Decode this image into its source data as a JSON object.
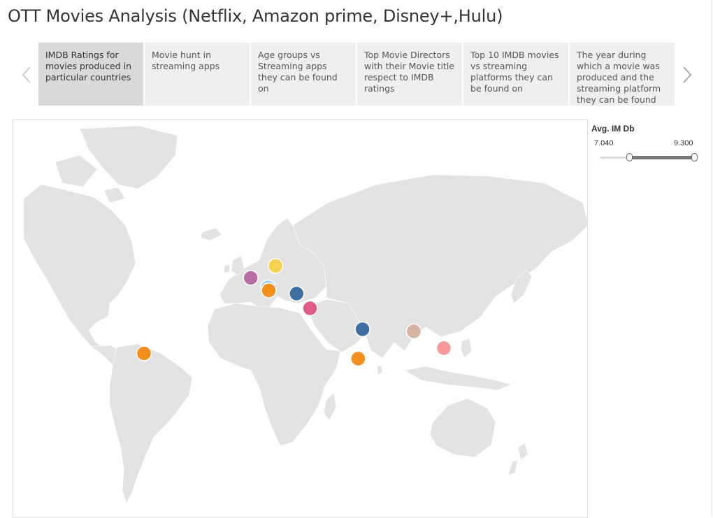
{
  "title": "OTT Movies Analysis (Netflix, Amazon prime, Disney+,Hulu)",
  "tabs": [
    {
      "label": "IMDB Ratings for movies produced in particular countries",
      "active": true
    },
    {
      "label": "Movie hunt in streaming apps",
      "active": false
    },
    {
      "label": "Age groups vs Streaming apps they can be found on",
      "active": false
    },
    {
      "label": "Top Movie Directors with their Movie title respect to IMDB ratings",
      "active": false
    },
    {
      "label": "Top 10 IMDB movies vs streaming platforms they can be found on",
      "active": false
    },
    {
      "label": "The year during which a movie was produced and the streaming platform they can be found on",
      "active": false
    }
  ],
  "nav": {
    "prev_icon": "chevron-left-icon",
    "next_icon": "chevron-right-icon"
  },
  "filter": {
    "title": "Avg. IM Db",
    "min_label": "7.040",
    "max_label": "9.300",
    "domain_min": 6.0,
    "domain_max": 9.3,
    "selected_min": 7.04,
    "selected_max": 9.3
  },
  "map": {
    "marks": [
      {
        "color": "#f7d154",
        "lon": 21.0,
        "lat": 52.2
      },
      {
        "color": "#b86fa8",
        "lon": 4.5,
        "lat": 46.5
      },
      {
        "color": "#9fd0ef",
        "lon": 16.0,
        "lat": 42.0
      },
      {
        "color": "#f28e1c",
        "lon": 16.5,
        "lat": 40.5
      },
      {
        "color": "#3d6fa3",
        "lon": 35.0,
        "lat": 39.0
      },
      {
        "color": "#e05b87",
        "lon": 44.0,
        "lat": 32.0
      },
      {
        "color": "#3d6fa3",
        "lon": 78.9,
        "lat": 22.0
      },
      {
        "color": "#f28e1c",
        "lon": 76.0,
        "lat": 8.0
      },
      {
        "color": "#d8b2a1",
        "lon": 113.0,
        "lat": 21.0
      },
      {
        "color": "#f7999b",
        "lon": 133.0,
        "lat": 13.0
      },
      {
        "color": "#f28e1c",
        "lon": -66.5,
        "lat": 10.5
      }
    ]
  }
}
